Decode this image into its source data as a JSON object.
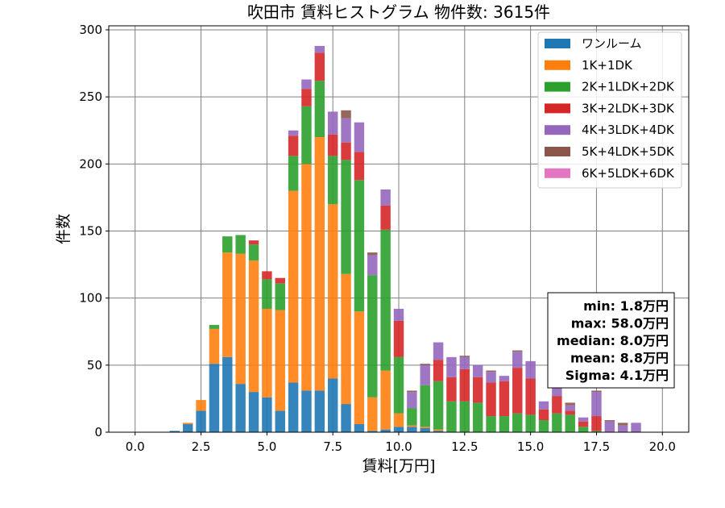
{
  "chart_data": {
    "type": "bar",
    "stacked": true,
    "title": "吹田市 賃料ヒストグラム 物件数: 3615件",
    "xlabel": "賃料[万円]",
    "ylabel": "件数",
    "xlim": [
      -1.0,
      21.0
    ],
    "ylim": [
      0,
      303
    ],
    "bin_width": 0.5,
    "xticks": [
      0.0,
      2.5,
      5.0,
      7.5,
      10.0,
      12.5,
      15.0,
      17.5,
      20.0
    ],
    "xtick_labels": [
      "0.0",
      "2.5",
      "5.0",
      "7.5",
      "10.0",
      "12.5",
      "15.0",
      "17.5",
      "20.0"
    ],
    "yticks": [
      0,
      50,
      100,
      150,
      200,
      250,
      300
    ],
    "ytick_labels": [
      "0",
      "50",
      "100",
      "150",
      "200",
      "250",
      "300"
    ],
    "grid": true,
    "legend_position": "top-right",
    "bins": [
      1.5,
      2.0,
      2.5,
      3.0,
      3.5,
      4.0,
      4.5,
      5.0,
      5.5,
      6.0,
      6.5,
      7.0,
      7.5,
      8.0,
      8.5,
      9.0,
      9.5,
      10.0,
      10.5,
      11.0,
      11.5,
      12.0,
      12.5,
      13.0,
      13.5,
      14.0,
      14.5,
      15.0,
      15.5,
      16.0,
      16.5,
      17.0,
      17.5,
      18.0,
      18.5,
      19.0,
      19.5
    ],
    "series": [
      {
        "name": "ワンルーム",
        "color": "#1f77b4",
        "values": [
          1,
          6,
          16,
          51,
          56,
          36,
          30,
          26,
          16,
          37,
          31,
          31,
          40,
          21,
          6,
          1,
          2,
          4,
          4,
          3,
          1,
          0,
          0,
          0,
          0,
          0,
          0,
          0,
          0,
          0,
          0,
          0,
          0,
          0,
          0,
          0,
          0
        ]
      },
      {
        "name": "1K+1DK",
        "color": "#ff7f0e",
        "values": [
          0,
          1,
          8,
          26,
          78,
          97,
          98,
          66,
          75,
          143,
          169,
          189,
          130,
          97,
          84,
          25,
          44,
          10,
          1,
          1,
          1,
          0,
          0,
          0,
          0,
          0,
          0,
          0,
          0,
          0,
          0,
          0,
          0,
          0,
          0,
          0,
          0
        ]
      },
      {
        "name": "2K+1LDK+2DK",
        "color": "#2ca02c",
        "values": [
          0,
          0,
          0,
          3,
          12,
          14,
          12,
          22,
          20,
          26,
          43,
          42,
          36,
          85,
          98,
          91,
          105,
          42,
          13,
          31,
          36,
          23,
          23,
          22,
          12,
          12,
          14,
          13,
          9,
          14,
          13,
          4,
          1,
          0,
          0,
          0,
          0
        ]
      },
      {
        "name": "3K+2LDK+3DK",
        "color": "#d62728",
        "values": [
          0,
          0,
          0,
          0,
          0,
          0,
          3,
          6,
          4,
          15,
          13,
          21,
          16,
          13,
          21,
          0,
          18,
          27,
          0,
          0,
          16,
          18,
          24,
          19,
          25,
          26,
          34,
          27,
          8,
          13,
          3,
          4,
          11,
          0,
          0,
          0,
          0
        ]
      },
      {
        "name": "4K+3LDK+4DK",
        "color": "#9467bd",
        "values": [
          0,
          0,
          0,
          0,
          0,
          0,
          0,
          0,
          0,
          4,
          7,
          5,
          17,
          18,
          22,
          15,
          12,
          9,
          12,
          15,
          13,
          15,
          9,
          9,
          8,
          4,
          12,
          13,
          6,
          6,
          4,
          3,
          18,
          8,
          5,
          7,
          0
        ]
      },
      {
        "name": "5K+4LDK+5DK",
        "color": "#8c564b",
        "values": [
          0,
          0,
          0,
          0,
          0,
          0,
          0,
          0,
          0,
          0,
          0,
          0,
          0,
          6,
          0,
          2,
          0,
          0,
          1,
          1,
          0,
          0,
          1,
          0,
          1,
          0,
          1,
          0,
          0,
          0,
          2,
          0,
          1,
          1,
          2,
          0,
          0
        ]
      },
      {
        "name": "6K+5LDK+6DK",
        "color": "#e377c2",
        "values": [
          0,
          0,
          0,
          0,
          0,
          0,
          0,
          0,
          0,
          0,
          0,
          0,
          0,
          0,
          0,
          0,
          0,
          0,
          0,
          0,
          0,
          0,
          0,
          0,
          0,
          0,
          0,
          0,
          0,
          0,
          0,
          0,
          0,
          0,
          0,
          0,
          0
        ]
      }
    ],
    "stats_text": [
      "min: 1.8万円",
      "max: 58.0万円",
      "median: 8.0万円",
      "mean: 8.8万円",
      "Sigma: 4.1万円"
    ]
  }
}
